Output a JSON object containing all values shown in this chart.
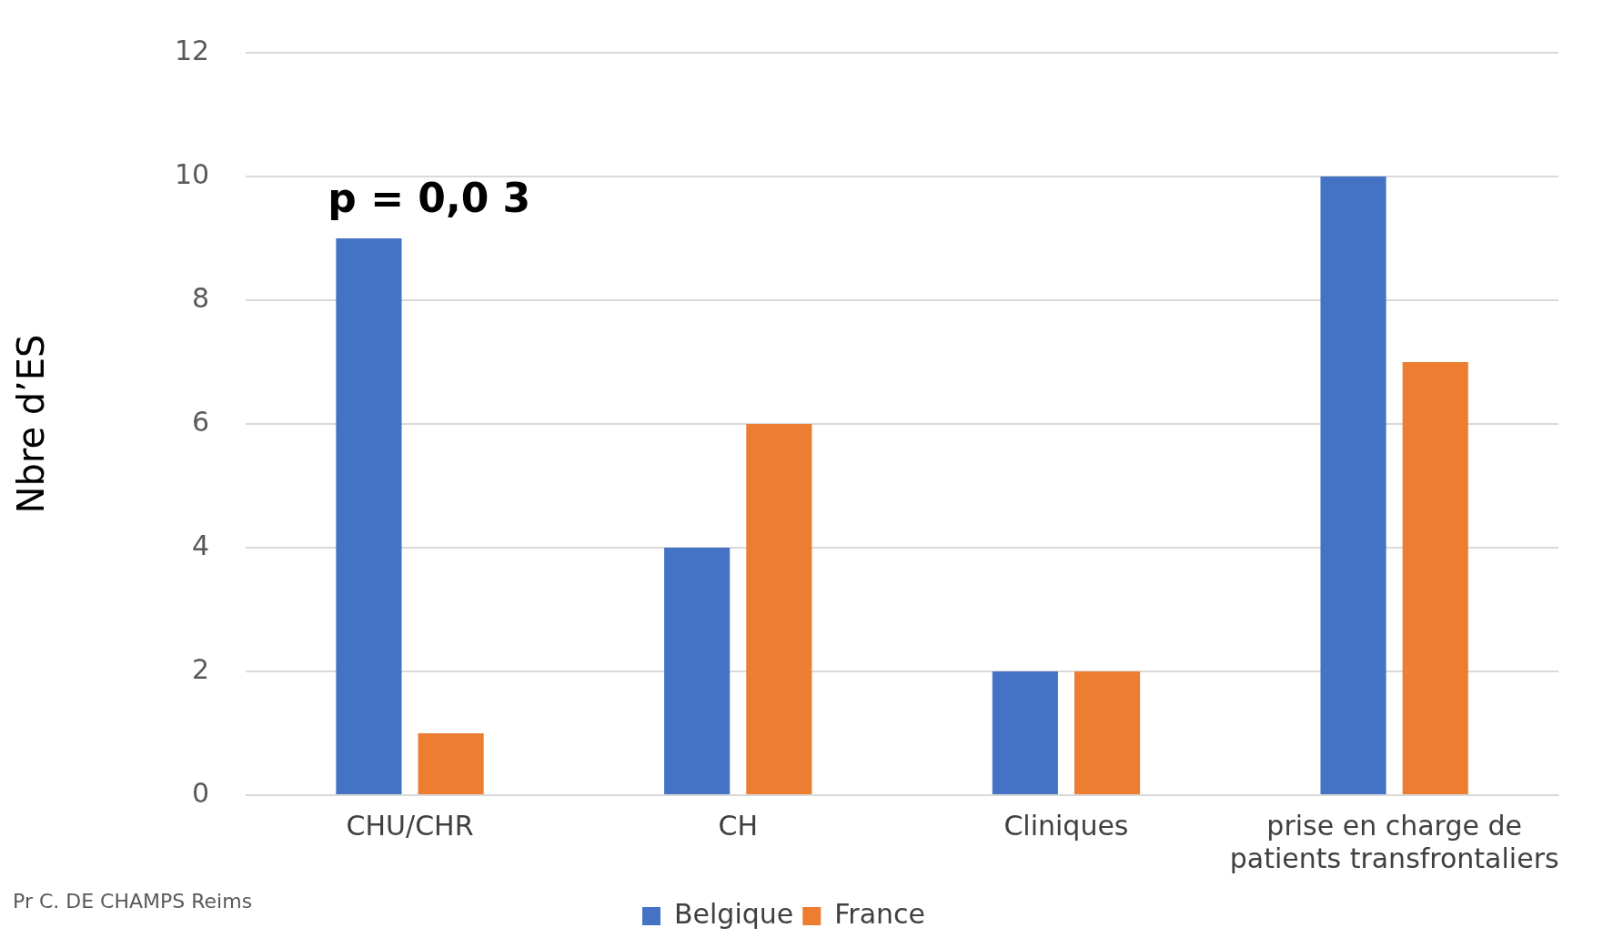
{
  "chart_data": {
    "type": "bar",
    "ylabel": "Nbre d’ES",
    "categories": [
      "CHU/CHR",
      "CH",
      "Cliniques",
      "prise en charge de patients transfrontaliers"
    ],
    "series": [
      {
        "name": "Belgique",
        "color": "#4472c4",
        "values": [
          9,
          4,
          2,
          10
        ]
      },
      {
        "name": "France",
        "color": "#ed7d31",
        "values": [
          1,
          6,
          2,
          7
        ]
      }
    ],
    "ylim": [
      0,
      12
    ],
    "yticks": [
      0,
      2,
      4,
      6,
      8,
      10,
      12
    ],
    "grid": "y",
    "legend": "bottom",
    "annotations": [
      "p = 0,0 3",
      "Pr C. DE CHAMPS Reims"
    ]
  }
}
